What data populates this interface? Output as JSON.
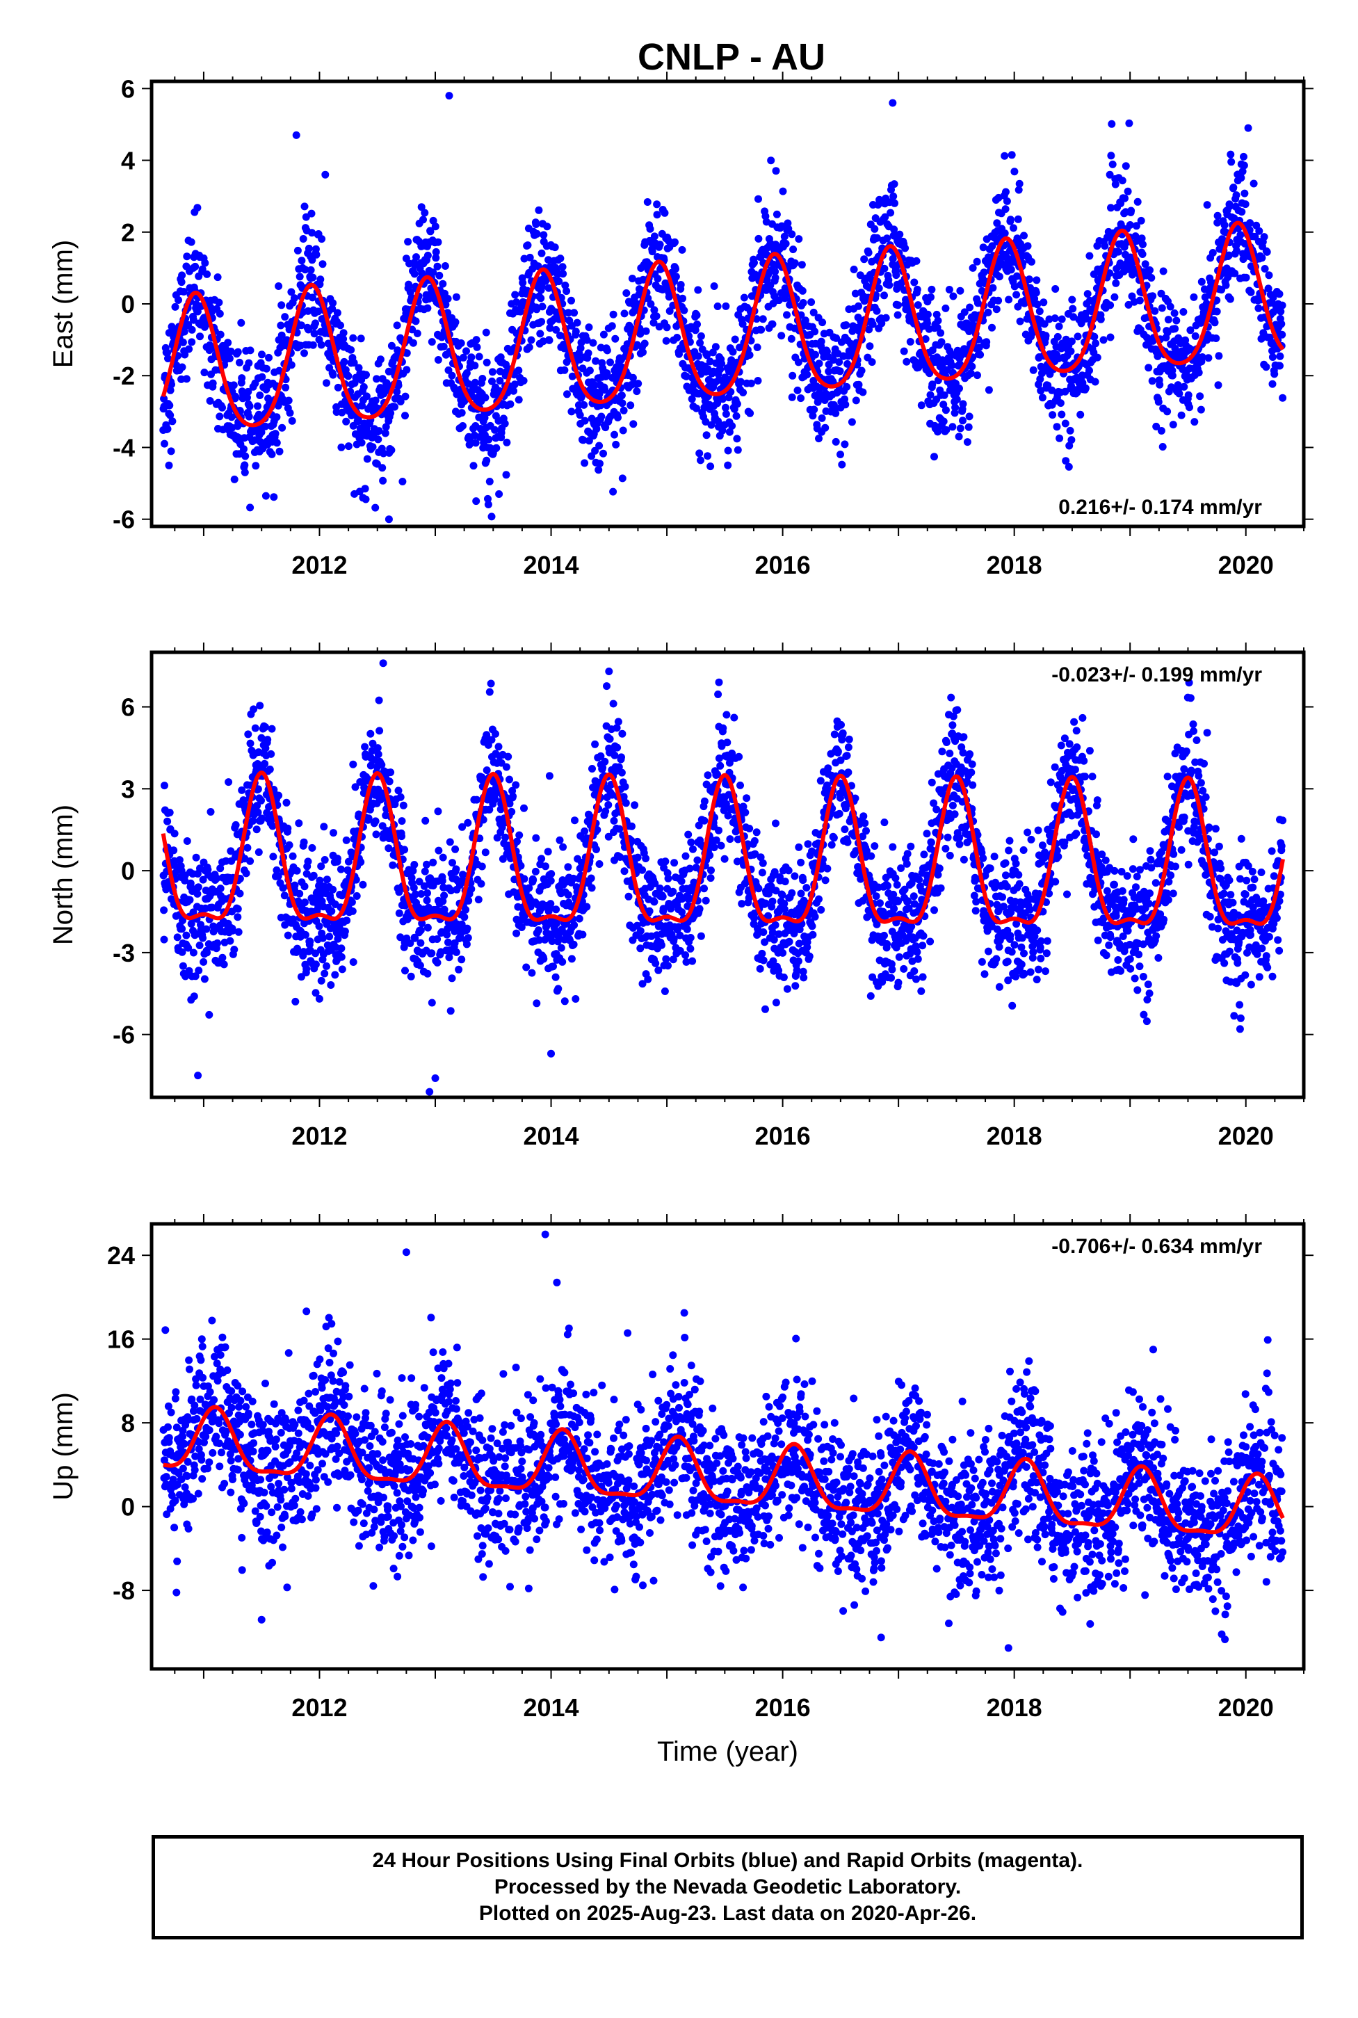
{
  "title": "CNLP - AU",
  "colors": {
    "points": "#0000ff",
    "fit": "#ff0000",
    "axes": "#000000"
  },
  "chart_data": [
    {
      "type": "scatter",
      "name": "East",
      "ylabel": "East (mm)",
      "xlabel": "",
      "xlim": [
        2010.55,
        2020.5
      ],
      "ylim": [
        -6.2,
        6.2
      ],
      "yticks": [
        -6,
        -4,
        -2,
        0,
        2,
        4,
        6
      ],
      "xticks": [
        2012,
        2014,
        2016,
        2018,
        2020
      ],
      "rate_label": "0.216+/- 0.174 mm/yr",
      "rate_position": "bottom-right",
      "data_span": [
        2010.65,
        2020.32
      ],
      "fit": {
        "trend_mm_per_yr": 0.216,
        "offset_mm": -0.9,
        "annual_amplitude_mm": 1.9,
        "annual_peak_fraction": 0.93,
        "semiannual_amplitude_mm": 0.3
      },
      "scatter_sd_mm": 0.9,
      "outliers": [
        [
          2013.12,
          5.8
        ],
        [
          2011.8,
          4.7
        ],
        [
          2012.6,
          -6.0
        ],
        [
          2010.7,
          -4.5
        ],
        [
          2016.95,
          5.6
        ],
        [
          2020.02,
          4.9
        ],
        [
          2013.55,
          -5.3
        ],
        [
          2012.05,
          3.6
        ]
      ]
    },
    {
      "type": "scatter",
      "name": "North",
      "ylabel": "North (mm)",
      "xlabel": "",
      "xlim": [
        2010.55,
        2020.5
      ],
      "ylim": [
        -8.3,
        8.0
      ],
      "yticks": [
        -6,
        -3,
        0,
        3,
        6
      ],
      "xticks": [
        2012,
        2014,
        2016,
        2018,
        2020
      ],
      "rate_label": "-0.023+/- 0.199 mm/yr",
      "rate_position": "top-right",
      "data_span": [
        2010.65,
        2020.32
      ],
      "fit": {
        "trend_mm_per_yr": -0.023,
        "offset_mm": 0.0,
        "annual_amplitude_mm": 2.6,
        "annual_peak_fraction": 0.5,
        "semiannual_amplitude_mm": 0.9
      },
      "scatter_sd_mm": 1.2,
      "outliers": [
        [
          2012.55,
          7.6
        ],
        [
          2012.95,
          -8.1
        ],
        [
          2010.95,
          -7.5
        ],
        [
          2014.5,
          7.3
        ],
        [
          2014.0,
          -6.7
        ],
        [
          2015.45,
          6.9
        ],
        [
          2019.95,
          -5.8
        ],
        [
          2013.0,
          -7.6
        ]
      ]
    },
    {
      "type": "scatter",
      "name": "Up",
      "ylabel": "Up (mm)",
      "xlabel": "Time (year)",
      "xlim": [
        2010.55,
        2020.5
      ],
      "ylim": [
        -15.5,
        27.0
      ],
      "yticks": [
        -8,
        0,
        8,
        16,
        24
      ],
      "xticks": [
        2012,
        2014,
        2016,
        2018,
        2020
      ],
      "rate_label": "-0.706+/- 0.634 mm/yr",
      "rate_position": "top-right",
      "data_span": [
        2010.65,
        2020.32
      ],
      "fit": {
        "trend_mm_per_yr": -0.706,
        "offset_mm": 2.6,
        "annual_amplitude_mm": 2.9,
        "annual_peak_fraction": 0.1,
        "semiannual_amplitude_mm": 0.9
      },
      "scatter_sd_mm": 3.6,
      "outliers": [
        [
          2013.95,
          26.0
        ],
        [
          2012.75,
          24.3
        ],
        [
          2014.05,
          21.4
        ],
        [
          2015.15,
          18.5
        ],
        [
          2017.95,
          -13.5
        ],
        [
          2011.5,
          -10.8
        ],
        [
          2019.2,
          15.0
        ],
        [
          2016.85,
          -12.5
        ]
      ]
    }
  ],
  "footer": {
    "line1": "24 Hour Positions Using Final Orbits (blue) and Rapid Orbits (magenta).",
    "line2": "Processed by the Nevada Geodetic Laboratory.",
    "line3": "Plotted on 2025-Aug-23. Last data on 2020-Apr-26."
  }
}
